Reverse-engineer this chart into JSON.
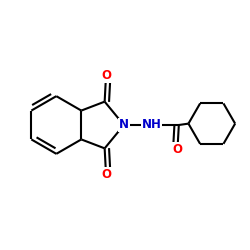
{
  "bg_color": "#ffffff",
  "bond_color": "#000000",
  "N_color": "#0000cc",
  "O_color": "#ff0000",
  "lw": 1.5,
  "dbo": 0.018,
  "fs": 8.5,
  "xlim": [
    0.0,
    1.0
  ],
  "ylim": [
    0.1,
    0.9
  ]
}
